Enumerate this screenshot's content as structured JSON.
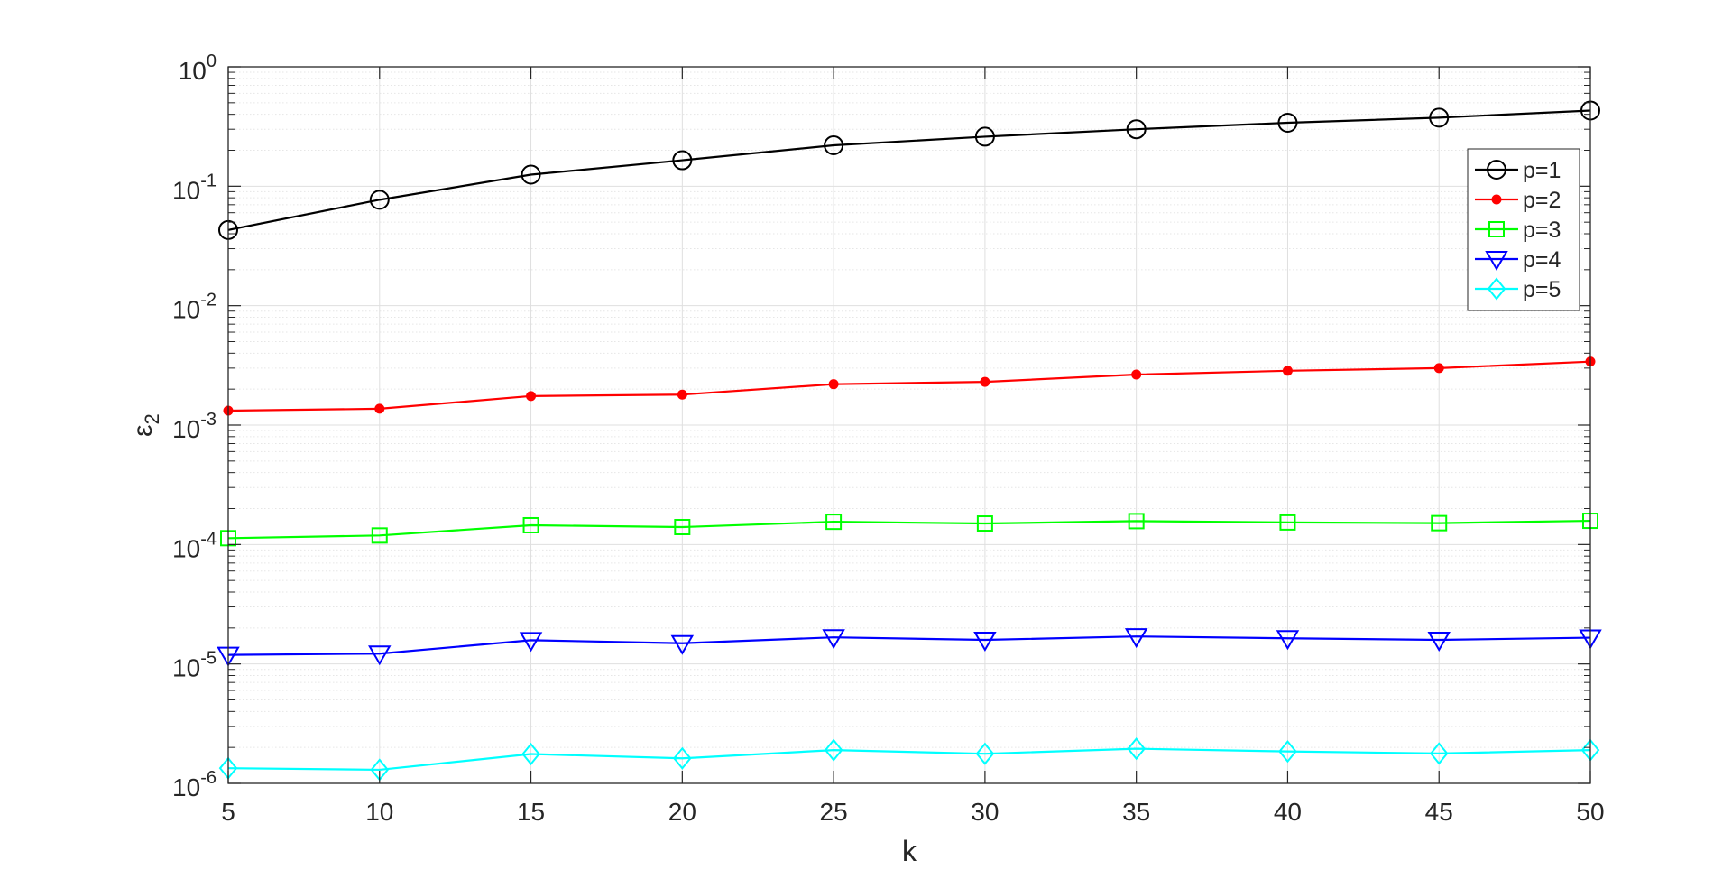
{
  "chart_data": {
    "type": "line",
    "xlabel": "k",
    "ylabel": "ε",
    "ylabel_subscript": "2",
    "yscale": "log",
    "xlim": [
      5,
      50
    ],
    "ylim": [
      1e-06,
      1
    ],
    "grid": true,
    "minor_grid": true,
    "legend_position": "top-right",
    "x": [
      5,
      10,
      15,
      20,
      25,
      30,
      35,
      40,
      45,
      50
    ],
    "x_ticks": [
      {
        "value": 5,
        "label": "5"
      },
      {
        "value": 10,
        "label": "10"
      },
      {
        "value": 15,
        "label": "15"
      },
      {
        "value": 20,
        "label": "20"
      },
      {
        "value": 25,
        "label": "25"
      },
      {
        "value": 30,
        "label": "30"
      },
      {
        "value": 35,
        "label": "35"
      },
      {
        "value": 40,
        "label": "40"
      },
      {
        "value": 45,
        "label": "45"
      },
      {
        "value": 50,
        "label": "50"
      }
    ],
    "y_ticks": [
      {
        "value": 1,
        "base": "10",
        "exp": "0"
      },
      {
        "value": 0.1,
        "base": "10",
        "exp": "-1"
      },
      {
        "value": 0.01,
        "base": "10",
        "exp": "-2"
      },
      {
        "value": 0.001,
        "base": "10",
        "exp": "-3"
      },
      {
        "value": 0.0001,
        "base": "10",
        "exp": "-4"
      },
      {
        "value": 1e-05,
        "base": "10",
        "exp": "-5"
      },
      {
        "value": 1e-06,
        "base": "10",
        "exp": "-6"
      }
    ],
    "series": [
      {
        "name": "p=1",
        "color": "#000000",
        "marker": "circle",
        "values": [
          0.043,
          0.077,
          0.125,
          0.165,
          0.22,
          0.26,
          0.3,
          0.34,
          0.375,
          0.43
        ]
      },
      {
        "name": "p=2",
        "color": "#ff0000",
        "marker": "dot",
        "values": [
          0.00132,
          0.00137,
          0.00175,
          0.0018,
          0.0022,
          0.0023,
          0.00265,
          0.00285,
          0.003,
          0.0034
        ]
      },
      {
        "name": "p=3",
        "color": "#00ff00",
        "marker": "square",
        "values": [
          0.000113,
          0.000119,
          0.000145,
          0.00014,
          0.000155,
          0.00015,
          0.000157,
          0.000153,
          0.000151,
          0.000158
        ]
      },
      {
        "name": "p=4",
        "color": "#0000ff",
        "marker": "triangle-down",
        "values": [
          1.19e-05,
          1.22e-05,
          1.58e-05,
          1.49e-05,
          1.67e-05,
          1.59e-05,
          1.7e-05,
          1.64e-05,
          1.59e-05,
          1.66e-05
        ]
      },
      {
        "name": "p=5",
        "color": "#00ffff",
        "marker": "diamond",
        "values": [
          1.34e-06,
          1.3e-06,
          1.76e-06,
          1.62e-06,
          1.9e-06,
          1.77e-06,
          1.95e-06,
          1.85e-06,
          1.78e-06,
          1.9e-06
        ]
      }
    ]
  }
}
